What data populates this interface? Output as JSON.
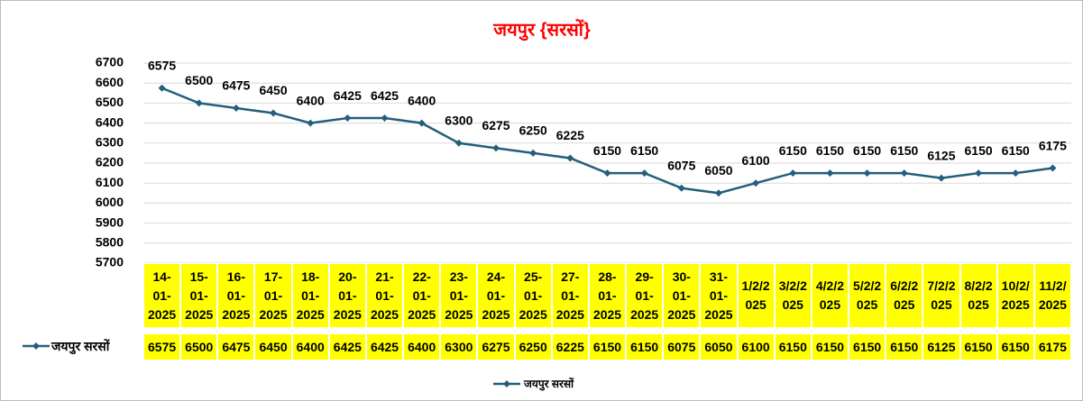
{
  "chart_data": {
    "type": "line",
    "title": "जयपुर {सरसों}",
    "categories": [
      "14-01-2025",
      "15-01-2025",
      "16-01-2025",
      "17-01-2025",
      "18-01-2025",
      "20-01-2025",
      "21-01-2025",
      "22-01-2025",
      "23-01-2025",
      "24-01-2025",
      "25-01-2025",
      "27-01-2025",
      "28-01-2025",
      "29-01-2025",
      "30-01-2025",
      "31-01-2025",
      "1/2/2025",
      "3/2/2025",
      "4/2/2025",
      "5/2/2025",
      "6/2/2025",
      "7/2/2025",
      "8/2/2025",
      "10/2/2025",
      "11/2/2025"
    ],
    "series": [
      {
        "name": "जयपुर सरसों",
        "color": "#245e7c",
        "values": [
          6575,
          6500,
          6475,
          6450,
          6400,
          6425,
          6425,
          6400,
          6300,
          6275,
          6250,
          6225,
          6150,
          6150,
          6075,
          6050,
          6100,
          6150,
          6150,
          6150,
          6150,
          6125,
          6150,
          6150,
          6175
        ]
      }
    ],
    "ylim": [
      5700,
      6700
    ],
    "yticks": [
      5700,
      5800,
      5900,
      6000,
      6100,
      6200,
      6300,
      6400,
      6500,
      6600,
      6700
    ],
    "grid": true
  }
}
